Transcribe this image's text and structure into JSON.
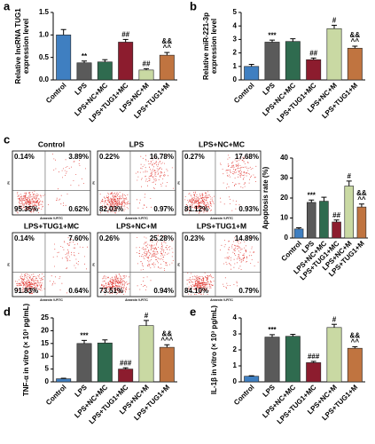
{
  "chart_data": [
    {
      "type": "bar",
      "panel": "a",
      "ylabel": [
        "Relative lncRNA TUG1",
        "expression level"
      ],
      "categories": [
        "Control",
        "LPS",
        "LPS+NC+MC",
        "LPS+TUG1+MC",
        "LPS+NC+M",
        "LPS+TUG1+M"
      ],
      "values": [
        1.0,
        0.38,
        0.4,
        0.84,
        0.22,
        0.55
      ],
      "errors": [
        0.12,
        0.04,
        0.05,
        0.06,
        0.03,
        0.06
      ],
      "annotations": [
        null,
        [
          "**"
        ],
        null,
        [
          "##"
        ],
        [
          "##"
        ],
        [
          "&&",
          "^^"
        ]
      ],
      "colors": [
        "#3f7fc1",
        "#5a5a5a",
        "#2f6b4f",
        "#8c1c2e",
        "#c9d9a3",
        "#c07440"
      ],
      "ylim": [
        0,
        1.5
      ],
      "yticks": [
        {
          "value": 0,
          "label": "0.0"
        },
        {
          "value": 0.5,
          "label": "0.5"
        },
        {
          "value": 1,
          "label": "1.0"
        },
        {
          "value": 1.5,
          "label": "1.5"
        }
      ]
    },
    {
      "type": "bar",
      "panel": "b",
      "ylabel": [
        "Relative miR-221-3p",
        "expression level"
      ],
      "categories": [
        "Control",
        "LPS",
        "LPS+NC+MC",
        "LPS+TUG1+MC",
        "LPS+NC+M",
        "LPS+TUG1+M"
      ],
      "values": [
        1.0,
        2.8,
        2.85,
        1.5,
        3.8,
        2.35
      ],
      "errors": [
        0.15,
        0.15,
        0.2,
        0.12,
        0.25,
        0.15
      ],
      "annotations": [
        null,
        [
          "***"
        ],
        null,
        [
          "##"
        ],
        [
          "#"
        ],
        [
          "&&",
          "^^"
        ]
      ],
      "colors": [
        "#3f7fc1",
        "#5a5a5a",
        "#2f6b4f",
        "#8c1c2e",
        "#c9d9a3",
        "#c07440"
      ],
      "ylim": [
        0,
        5
      ],
      "yticks": [
        0,
        1,
        2,
        3,
        4,
        5
      ]
    },
    {
      "type": "flow",
      "panel": "c",
      "x_label": "Annexin V-FITC",
      "y_label": "PI",
      "plots": [
        {
          "title": "Control",
          "values": [
            0.14,
            3.89,
            95.35,
            0.62
          ],
          "value_labels": [
            "0.14%",
            "3.89%",
            "95.35%",
            "0.62%"
          ]
        },
        {
          "title": "LPS",
          "values": [
            0.22,
            16.78,
            82.03,
            0.97
          ],
          "value_labels": [
            "0.22%",
            "16.78%",
            "82.03%",
            "0.97%"
          ]
        },
        {
          "title": "LPS+NC+MC",
          "values": [
            0.27,
            17.68,
            81.12,
            0.93
          ],
          "value_labels": [
            "0.27%",
            "17.68%",
            "81.12%",
            "0.93%"
          ]
        },
        {
          "title": "LPS+TUG1+MC",
          "values": [
            0.14,
            7.6,
            91.83,
            0.64
          ],
          "value_labels": [
            "0.14%",
            "7.60%",
            "91.83%",
            "0.64%"
          ]
        },
        {
          "title": "LPS+NC+M",
          "values": [
            0.26,
            25.28,
            73.51,
            0.94
          ],
          "value_labels": [
            "0.26%",
            "25.28%",
            "73.51%",
            "0.94%"
          ]
        },
        {
          "title": "LPS+TUG1+M",
          "values": [
            0.23,
            14.89,
            84.1,
            0.79
          ],
          "value_labels": [
            "0.23%",
            "14.89%",
            "84.10%",
            "0.79%"
          ]
        }
      ]
    },
    {
      "type": "bar",
      "ylabel": [
        "Apoptosis rate (%)"
      ],
      "categories": [
        "Control",
        "LPS",
        "LPS+NC+MC",
        "LPS+TUG1+MC",
        "LPS+NC+M",
        "LPS+TUG1+M"
      ],
      "values": [
        4.5,
        17.8,
        18.4,
        8.0,
        26,
        15.5
      ],
      "errors": [
        0.6,
        1.2,
        2,
        1,
        2.5,
        1.5
      ],
      "annotations": [
        null,
        [
          "***"
        ],
        null,
        [
          "##"
        ],
        [
          "#"
        ],
        [
          "&&",
          "^^"
        ]
      ],
      "colors": [
        "#3f7fc1",
        "#5a5a5a",
        "#2f6b4f",
        "#8c1c2e",
        "#c9d9a3",
        "#c07440"
      ],
      "ylim": [
        0,
        40
      ],
      "yticks": [
        0,
        10,
        20,
        30,
        40
      ]
    },
    {
      "type": "bar",
      "panel": "d",
      "ylabel": [
        "TNF-α in vitro (× 10³ pg/mL)"
      ],
      "categories": [
        "Control",
        "LPS",
        "LPS+NC+MC",
        "LPS+TUG1+MC",
        "LPS+NC+M",
        "LPS+TUG1+M"
      ],
      "values": [
        1.2,
        15,
        15.2,
        5,
        22,
        13.5
      ],
      "errors": [
        0.2,
        1.2,
        1.2,
        0.5,
        2,
        1
      ],
      "annotations": [
        null,
        [
          "***"
        ],
        null,
        [
          "###"
        ],
        [
          "#"
        ],
        [
          "&&",
          "^^^"
        ]
      ],
      "colors": [
        "#3f7fc1",
        "#5a5a5a",
        "#2f6b4f",
        "#8c1c2e",
        "#c9d9a3",
        "#c07440"
      ],
      "ylim": [
        0,
        25
      ],
      "yticks": [
        0,
        5,
        10,
        15,
        20,
        25
      ]
    },
    {
      "type": "bar",
      "panel": "e",
      "ylabel": [
        "IL-1β in vitro (× 10³ pg/mL)"
      ],
      "categories": [
        "Control",
        "LPS",
        "LPS+NC+MC",
        "LPS+TUG1+MC",
        "LPS+NC+M",
        "LPS+TUG1+M"
      ],
      "values": [
        0.35,
        2.8,
        2.85,
        1.2,
        3.4,
        2.1
      ],
      "errors": [
        0.03,
        0.15,
        0.12,
        0.08,
        0.2,
        0.1
      ],
      "annotations": [
        null,
        [
          "***"
        ],
        null,
        [
          "###"
        ],
        [
          "#"
        ],
        [
          "&&",
          "^^"
        ]
      ],
      "colors": [
        "#3f7fc1",
        "#5a5a5a",
        "#2f6b4f",
        "#8c1c2e",
        "#c9d9a3",
        "#c07440"
      ],
      "ylim": [
        0,
        4
      ],
      "yticks": [
        0,
        1,
        2,
        3,
        4
      ]
    }
  ]
}
